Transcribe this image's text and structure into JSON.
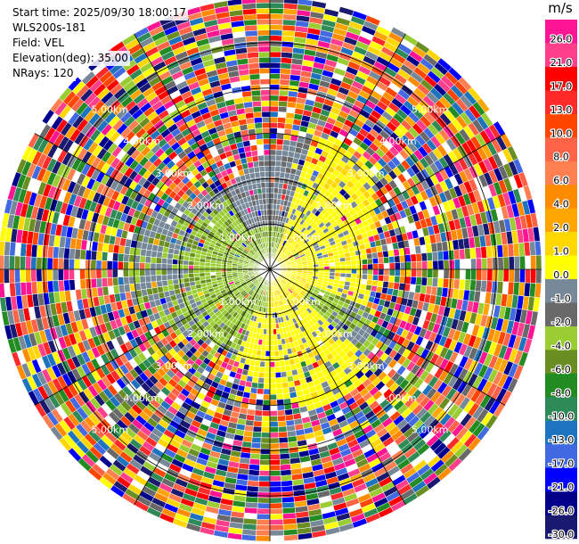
{
  "header": {
    "start_time": "Start time: 2025/09/30 18:00:17",
    "instrument": "WLS200s-181",
    "field": "Field: VEL",
    "elevation": "Elevation(deg): 35.00",
    "nrays": "NRays: 120"
  },
  "chart_data": {
    "type": "heatmap",
    "projection": "polar-ppi",
    "nrays": 120,
    "elevation_deg": 35.0,
    "units": "m/s",
    "range_rings_km": [
      1.0,
      2.0,
      3.0,
      4.0,
      5.0
    ],
    "ring_labels": [
      "1.00km",
      "2.00km",
      "3.00km",
      "4.00km",
      "5.00km"
    ],
    "max_range_km": 6.0,
    "colorbar": {
      "label": "m/s",
      "ticks": [
        "26.0",
        "21.0",
        "17.0",
        "13.0",
        "10.0",
        "8.0",
        "6.0",
        "4.0",
        "2.0",
        "1.0",
        "0.0",
        "-1.0",
        "-2.0",
        "-4.0",
        "-6.0",
        "-8.0",
        "-10.0",
        "-13.0",
        "-17.0",
        "-21.0",
        "-26.0",
        "-30.0"
      ],
      "colors": [
        "#ff1493",
        "#ff3f8c",
        "#ff0000",
        "#ff2a2a",
        "#ff4500",
        "#ff6347",
        "#ff7f50",
        "#ff8c00",
        "#ffa500",
        "#ffd700",
        "#ffff00",
        "#778899",
        "#696969",
        "#9acd32",
        "#6b8e23",
        "#228b22",
        "#2e8b57",
        "#1e73be",
        "#4169e1",
        "#0000ff",
        "#00008b",
        "#191970"
      ]
    },
    "pattern": "yellow positive velocities in NE and S sectors, olive-green negative velocities in W and center, grey near-zero at mid ranges, noisy random colors beyond ~3 km"
  }
}
